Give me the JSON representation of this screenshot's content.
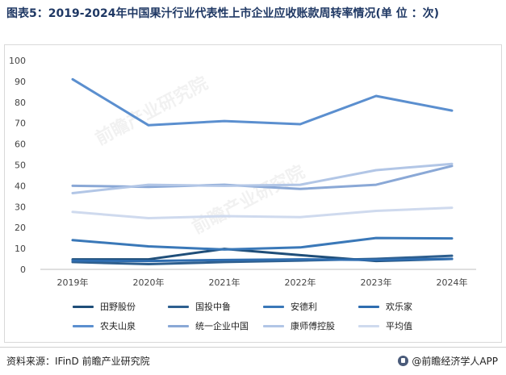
{
  "title": "图表5：2019-2024年中国果汁行业代表性上市企业应收账款周转率情况(单 位 ：次)",
  "watermark": "前瞻产业研究院",
  "source_label": "资料来源：IFinD 前瞻产业研究院",
  "brand_label": "@前瞻经济学人APP",
  "colors": {
    "title": "#1f3864"
  },
  "chart_data": {
    "type": "line",
    "title": "",
    "xlabel": "",
    "ylabel": "",
    "ylim": [
      0,
      100
    ],
    "yticks": [
      0,
      10,
      20,
      30,
      40,
      50,
      60,
      70,
      80,
      90,
      100
    ],
    "categories": [
      "2019年",
      "2020年",
      "2021年",
      "2022年",
      "2023年",
      "2024年"
    ],
    "grid": false,
    "legend_position": "bottom",
    "series": [
      {
        "name": "田野股份",
        "color": "#1f4e79",
        "values": [
          4.8,
          4.8,
          9.8,
          6.8,
          4.0,
          5.0
        ]
      },
      {
        "name": "国投中鲁",
        "color": "#2e5f8f",
        "values": [
          3.5,
          2.5,
          3.5,
          4.2,
          5.0,
          6.5
        ]
      },
      {
        "name": "安德利",
        "color": "#3a78b8",
        "values": [
          14.0,
          11.0,
          9.5,
          10.5,
          15.0,
          14.8
        ]
      },
      {
        "name": "欢乐家",
        "color": "#2f6db0",
        "values": [
          4.2,
          4.0,
          4.5,
          4.8,
          4.5,
          5.0
        ]
      },
      {
        "name": "农夫山泉",
        "color": "#5b8fcf",
        "values": [
          91.0,
          69.0,
          71.0,
          69.5,
          83.0,
          76.0
        ]
      },
      {
        "name": "统一企业中国",
        "color": "#8aa8d6",
        "values": [
          40.0,
          39.5,
          40.5,
          38.5,
          40.5,
          49.5
        ]
      },
      {
        "name": "康师傅控股",
        "color": "#b2c6e6",
        "values": [
          36.5,
          40.5,
          40.0,
          40.5,
          47.5,
          50.5
        ]
      },
      {
        "name": "平均值",
        "color": "#cfdaee",
        "values": [
          27.5,
          24.5,
          25.5,
          25.0,
          28.0,
          29.5
        ]
      }
    ]
  }
}
